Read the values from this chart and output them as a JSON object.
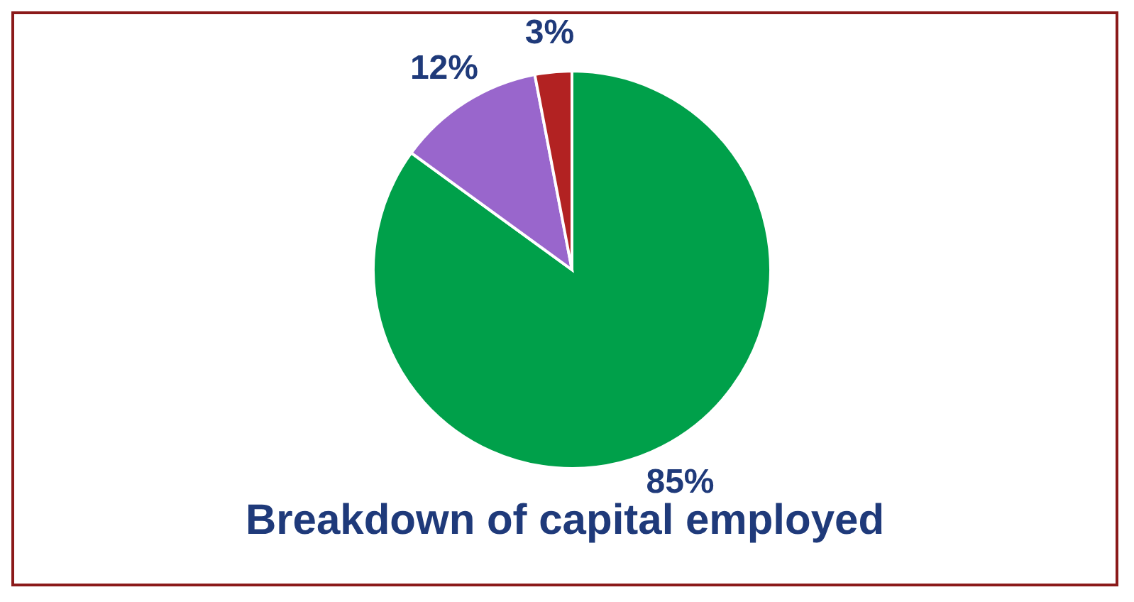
{
  "chart_data": {
    "type": "pie",
    "title": "Breakdown of capital employed",
    "categories": [
      null,
      null,
      null
    ],
    "values": [
      85,
      12,
      3
    ],
    "colors": [
      "#00a04a",
      "#9966cc",
      "#b22222"
    ],
    "value_labels": [
      "85%",
      "12%",
      "3%"
    ],
    "legend": false
  }
}
